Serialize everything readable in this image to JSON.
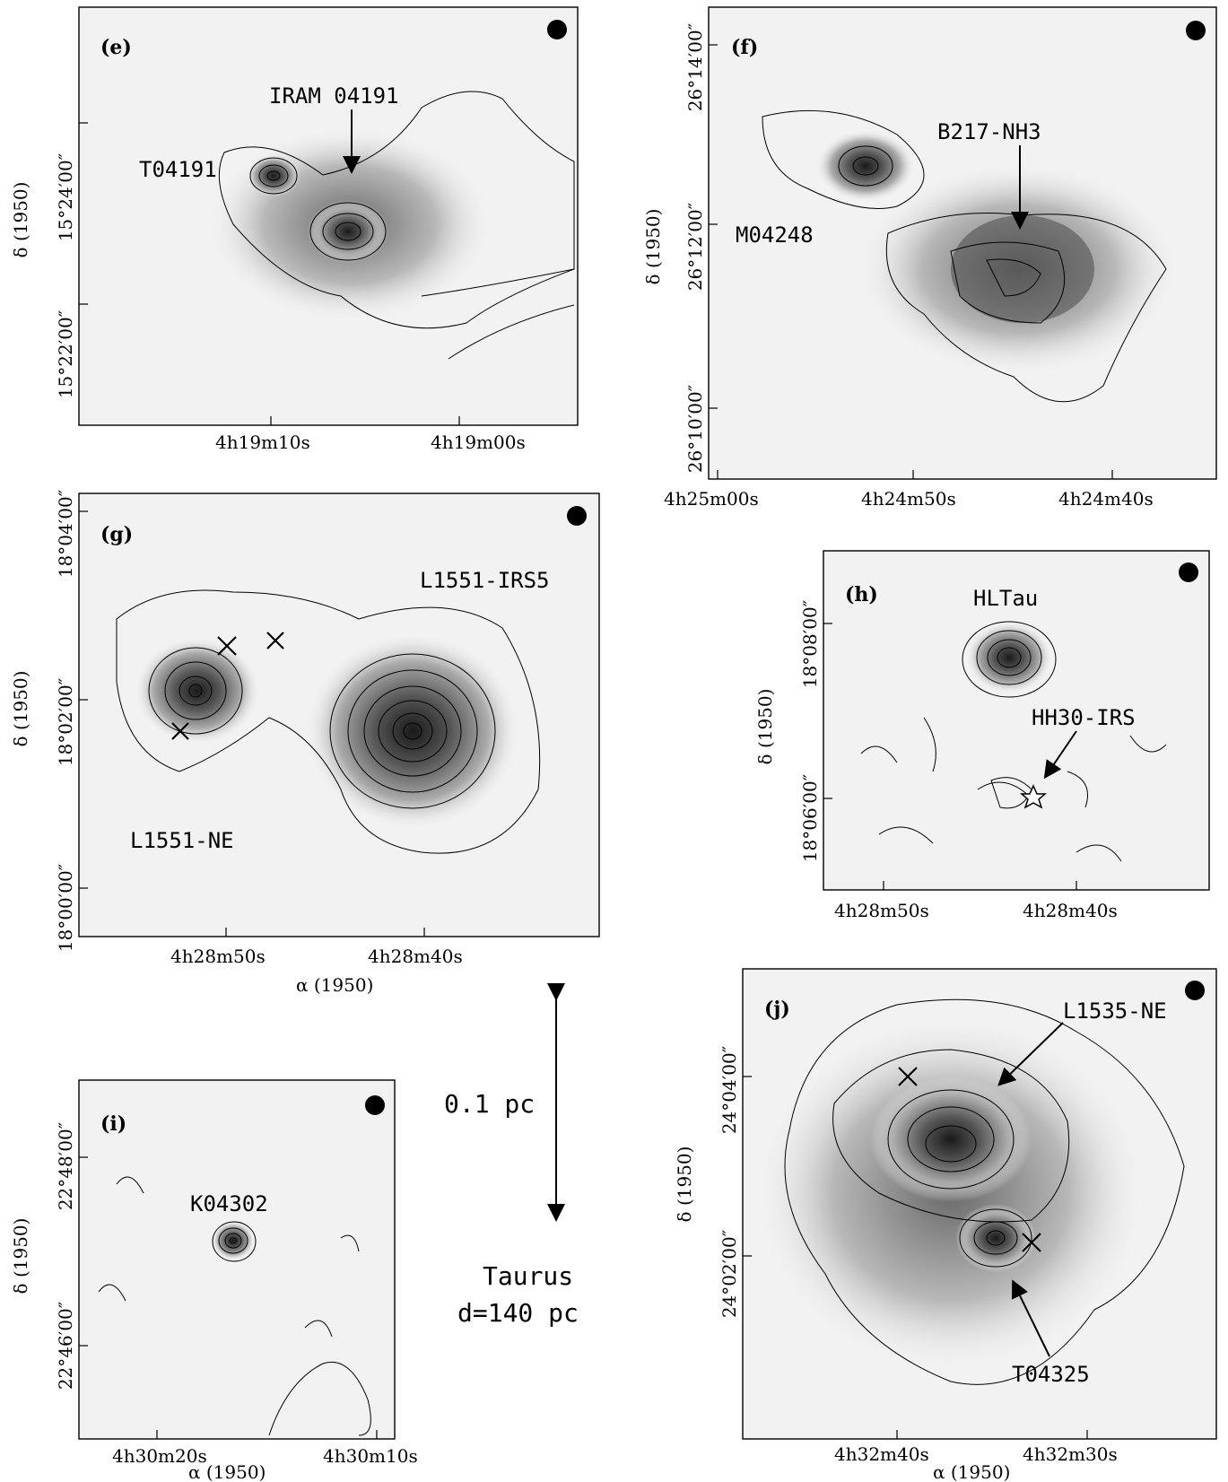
{
  "panels": {
    "e": {
      "label": "(e)",
      "sources": [
        "IRAM 04191",
        "T04191"
      ],
      "ra_ticks": [
        "4h19m10s",
        "4h19m00s"
      ],
      "dec_ticks": [
        "15°24′00″",
        "15°22′00″"
      ],
      "dec_axis": "δ (1950)"
    },
    "f": {
      "label": "(f)",
      "sources": [
        "B217-NH3",
        "M04248"
      ],
      "ra_ticks": [
        "4h25m00s",
        "4h24m50s",
        "4h24m40s"
      ],
      "dec_ticks": [
        "26°14′00″",
        "26°12′00″",
        "26°10′00″"
      ],
      "dec_axis": "δ (1950)"
    },
    "g": {
      "label": "(g)",
      "sources": [
        "L1551-IRS5",
        "L1551-NE"
      ],
      "ra_ticks": [
        "4h28m50s",
        "4h28m40s"
      ],
      "dec_ticks": [
        "18°04′00″",
        "18°02′00″",
        "18°00′00″"
      ],
      "dec_axis": "δ (1950)",
      "ra_axis": "α (1950)"
    },
    "h": {
      "label": "(h)",
      "sources": [
        "HLTau",
        "HH30-IRS"
      ],
      "ra_ticks": [
        "4h28m50s",
        "4h28m40s"
      ],
      "dec_ticks": [
        "18°08′00″",
        "18°06′00″"
      ],
      "dec_axis": "δ (1950)"
    },
    "i": {
      "label": "(i)",
      "sources": [
        "K04302"
      ],
      "ra_ticks": [
        "4h30m20s",
        "4h30m10s"
      ],
      "dec_ticks": [
        "22°48′00″",
        "22°46′00″"
      ],
      "dec_axis": "δ (1950)",
      "ra_axis": "α (1950)"
    },
    "j": {
      "label": "(j)",
      "sources": [
        "L1535-NE",
        "T04325"
      ],
      "ra_ticks": [
        "4h32m40s",
        "4h32m30s"
      ],
      "dec_ticks": [
        "24°04′00″",
        "24°02′00″"
      ],
      "dec_axis": "δ (1950)",
      "ra_axis": "α (1950)"
    }
  },
  "scale_bar": {
    "label": "0.1 pc"
  },
  "region": {
    "name": "Taurus",
    "distance": "d=140 pc"
  }
}
